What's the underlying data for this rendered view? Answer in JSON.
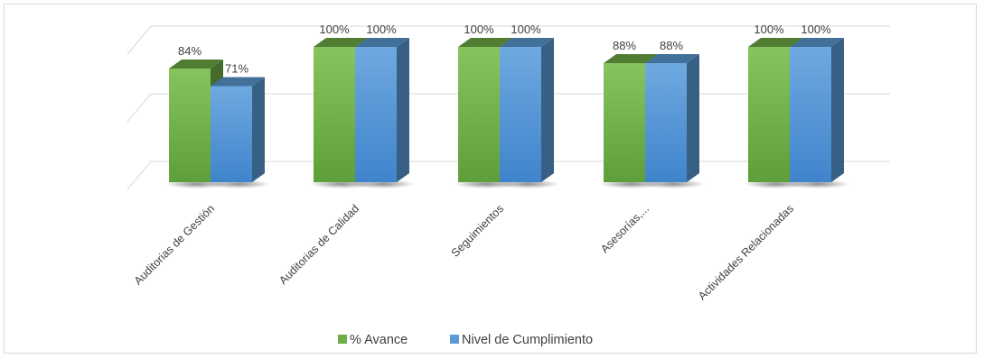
{
  "chart_data": {
    "type": "bar",
    "title": "",
    "xlabel": "",
    "ylabel": "",
    "ylim": [
      0,
      1
    ],
    "grid": true,
    "legend_position": "bottom",
    "three_d": true,
    "categories": [
      "Auditorias de Gestión",
      "Auditorias de Calidad",
      "Seguimientos",
      "Asesorías,...",
      "Actividades Relacionadas"
    ],
    "series": [
      {
        "name": "% Avance",
        "color": "#70ad47",
        "values": [
          0.84,
          1.0,
          1.0,
          0.88,
          1.0
        ],
        "labels": [
          "84%",
          "100%",
          "100%",
          "88%",
          "100%"
        ]
      },
      {
        "name": "Nivel de Cumplimiento",
        "color": "#5b9bd5",
        "values": [
          0.71,
          1.0,
          1.0,
          0.88,
          1.0
        ],
        "labels": [
          "71%",
          "100%",
          "100%",
          "88%",
          "100%"
        ]
      }
    ]
  }
}
